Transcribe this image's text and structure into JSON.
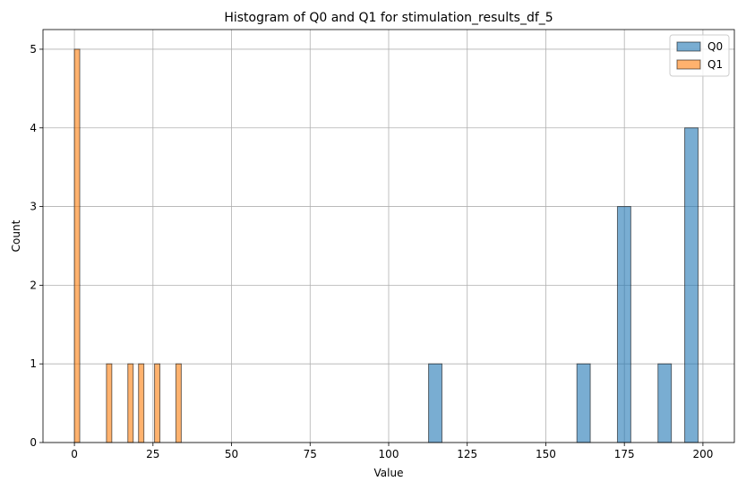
{
  "chart_data": {
    "type": "bar",
    "title": "Histogram of Q0 and Q1 for stimulation_results_df_5",
    "xlabel": "Value",
    "ylabel": "Count",
    "xlim": [
      -10,
      210
    ],
    "ylim": [
      0,
      5.25
    ],
    "xticks": [
      0,
      25,
      50,
      75,
      100,
      125,
      150,
      175,
      200
    ],
    "yticks": [
      0,
      1,
      2,
      3,
      4,
      5
    ],
    "grid": true,
    "legend_position": "top-right",
    "series": [
      {
        "name": "Q0",
        "color": "#1f77b4",
        "bin_width": 4.25,
        "bars": [
          {
            "x0": 112.7,
            "count": 1
          },
          {
            "x0": 159.9,
            "count": 1
          },
          {
            "x0": 172.8,
            "count": 3
          },
          {
            "x0": 185.7,
            "count": 1
          },
          {
            "x0": 194.2,
            "count": 4
          }
        ]
      },
      {
        "name": "Q1",
        "color": "#ff7f0e",
        "bin_width": 1.7,
        "bars": [
          {
            "x0": 0.0,
            "count": 5
          },
          {
            "x0": 10.2,
            "count": 1
          },
          {
            "x0": 17.0,
            "count": 1
          },
          {
            "x0": 20.4,
            "count": 1
          },
          {
            "x0": 25.5,
            "count": 1
          },
          {
            "x0": 32.3,
            "count": 1
          }
        ]
      }
    ]
  }
}
